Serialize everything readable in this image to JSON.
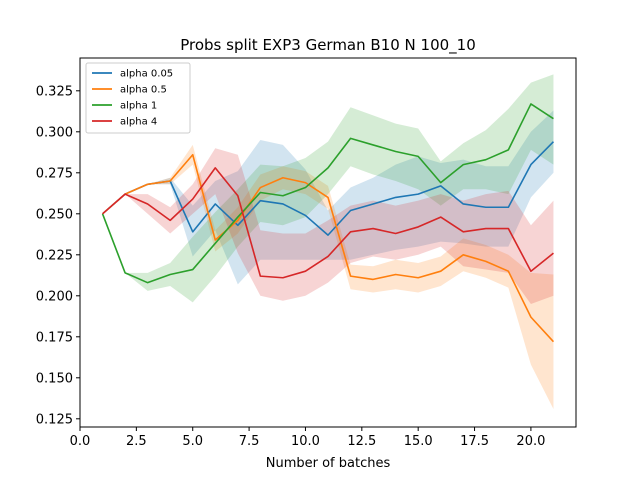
{
  "chart_data": {
    "type": "line",
    "title": "Probs split EXP3 German B10 N 100_10",
    "xlabel": "Number of batches",
    "ylabel": "",
    "xlim": [
      0.0,
      22.0
    ],
    "ylim": [
      0.12,
      0.345
    ],
    "xticks": [
      0.0,
      2.5,
      5.0,
      7.5,
      10.0,
      12.5,
      15.0,
      17.5,
      20.0
    ],
    "xtick_labels": [
      "0.0",
      "2.5",
      "5.0",
      "7.5",
      "10.0",
      "12.5",
      "15.0",
      "17.5",
      "20.0"
    ],
    "yticks": [
      0.125,
      0.15,
      0.175,
      0.2,
      0.225,
      0.25,
      0.275,
      0.3,
      0.325
    ],
    "ytick_labels": [
      "0.125",
      "0.150",
      "0.175",
      "0.200",
      "0.225",
      "0.250",
      "0.275",
      "0.300",
      "0.325"
    ],
    "grid": false,
    "legend_position": "top-left",
    "x": [
      1,
      2,
      3,
      4,
      5,
      6,
      7,
      8,
      9,
      10,
      11,
      12,
      13,
      14,
      15,
      16,
      17,
      18,
      19,
      20,
      21
    ],
    "series": [
      {
        "name": "alpha 0.05",
        "color": "#1f77b4",
        "values": [
          0.25,
          0.262,
          0.268,
          0.27,
          0.239,
          0.256,
          0.243,
          0.258,
          0.256,
          0.249,
          0.237,
          0.252,
          0.256,
          0.26,
          0.262,
          0.267,
          0.256,
          0.254,
          0.254,
          0.28,
          0.294
        ],
        "lower": [
          0.25,
          0.262,
          0.268,
          0.268,
          0.224,
          0.24,
          0.207,
          0.222,
          0.222,
          0.222,
          0.222,
          0.222,
          0.225,
          0.228,
          0.23,
          0.233,
          0.232,
          0.23,
          0.23,
          0.26,
          0.275
        ],
        "upper": [
          0.25,
          0.262,
          0.268,
          0.272,
          0.255,
          0.27,
          0.276,
          0.295,
          0.292,
          0.277,
          0.252,
          0.266,
          0.272,
          0.28,
          0.285,
          0.281,
          0.283,
          0.279,
          0.279,
          0.3,
          0.313
        ]
      },
      {
        "name": "alpha 0.5",
        "color": "#ff7f0e",
        "values": [
          0.25,
          0.262,
          0.268,
          0.27,
          0.286,
          0.234,
          0.246,
          0.266,
          0.272,
          0.269,
          0.26,
          0.212,
          0.21,
          0.213,
          0.211,
          0.215,
          0.225,
          0.221,
          0.215,
          0.187,
          0.172
        ],
        "lower": [
          0.25,
          0.262,
          0.268,
          0.268,
          0.28,
          0.227,
          0.238,
          0.258,
          0.265,
          0.262,
          0.253,
          0.204,
          0.202,
          0.204,
          0.202,
          0.206,
          0.215,
          0.211,
          0.205,
          0.158,
          0.131
        ],
        "upper": [
          0.25,
          0.262,
          0.268,
          0.272,
          0.292,
          0.24,
          0.254,
          0.274,
          0.279,
          0.276,
          0.267,
          0.219,
          0.218,
          0.222,
          0.22,
          0.224,
          0.235,
          0.231,
          0.225,
          0.214,
          0.213
        ]
      },
      {
        "name": "alpha 1",
        "color": "#2ca02c",
        "values": [
          0.25,
          0.214,
          0.208,
          0.213,
          0.216,
          0.232,
          0.248,
          0.263,
          0.261,
          0.266,
          0.278,
          0.296,
          0.292,
          0.288,
          0.285,
          0.269,
          0.28,
          0.283,
          0.289,
          0.317,
          0.308
        ],
        "lower": [
          0.25,
          0.214,
          0.203,
          0.206,
          0.196,
          0.212,
          0.23,
          0.245,
          0.243,
          0.248,
          0.262,
          0.279,
          0.274,
          0.27,
          0.265,
          0.255,
          0.265,
          0.265,
          0.262,
          0.289,
          0.28
        ],
        "upper": [
          0.25,
          0.214,
          0.214,
          0.22,
          0.236,
          0.251,
          0.265,
          0.28,
          0.279,
          0.284,
          0.294,
          0.315,
          0.31,
          0.305,
          0.302,
          0.282,
          0.293,
          0.301,
          0.314,
          0.33,
          0.335
        ]
      },
      {
        "name": "alpha 4",
        "color": "#d62728",
        "values": [
          0.25,
          0.262,
          0.256,
          0.246,
          0.259,
          0.278,
          0.261,
          0.212,
          0.211,
          0.215,
          0.224,
          0.239,
          0.241,
          0.238,
          0.242,
          0.248,
          0.239,
          0.241,
          0.241,
          0.215,
          0.226
        ],
        "lower": [
          0.25,
          0.262,
          0.25,
          0.238,
          0.25,
          0.262,
          0.226,
          0.2,
          0.197,
          0.2,
          0.208,
          0.22,
          0.224,
          0.222,
          0.225,
          0.23,
          0.218,
          0.216,
          0.214,
          0.195,
          0.2
        ],
        "upper": [
          0.25,
          0.262,
          0.262,
          0.254,
          0.268,
          0.29,
          0.286,
          0.24,
          0.238,
          0.238,
          0.246,
          0.255,
          0.258,
          0.255,
          0.258,
          0.262,
          0.258,
          0.262,
          0.264,
          0.243,
          0.258
        ]
      }
    ]
  }
}
